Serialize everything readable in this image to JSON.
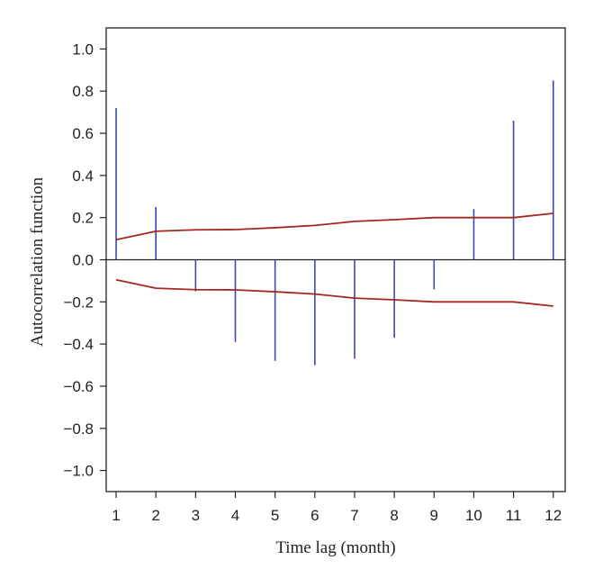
{
  "chart_data": {
    "type": "bar",
    "xlabel": "Time lag (month)",
    "ylabel": "Autocorrelation function",
    "ylim": [
      -1.1,
      1.1
    ],
    "xlim": [
      0.75,
      12.3
    ],
    "grid": false,
    "x_ticks": [
      1,
      2,
      3,
      4,
      5,
      6,
      7,
      8,
      9,
      10,
      11,
      12
    ],
    "y_ticks": [
      -1.0,
      -0.8,
      -0.6,
      -0.4,
      -0.2,
      0.0,
      0.2,
      0.4,
      0.6,
      0.8,
      1.0
    ],
    "x_tick_labels": [
      "1",
      "2",
      "3",
      "4",
      "5",
      "6",
      "7",
      "8",
      "9",
      "10",
      "11",
      "12"
    ],
    "y_tick_labels": [
      "−1.0",
      "−0.8",
      "−0.6",
      "−0.4",
      "−0.2",
      "0.0",
      "0.2",
      "0.4",
      "0.6",
      "0.8",
      "1.0"
    ],
    "series": [
      {
        "type": "bar",
        "x": [
          1,
          2,
          3,
          4,
          5,
          6,
          7,
          8,
          9,
          10,
          11,
          12
        ],
        "values": [
          0.72,
          0.25,
          -0.15,
          -0.39,
          -0.48,
          -0.5,
          -0.47,
          -0.37,
          -0.14,
          0.24,
          0.66,
          0.85
        ]
      },
      {
        "type": "line",
        "x": [
          1,
          2,
          3,
          4,
          5,
          6,
          7,
          8,
          9,
          10,
          11,
          12
        ],
        "values": [
          0.095,
          0.135,
          0.142,
          0.143,
          0.152,
          0.163,
          0.182,
          0.19,
          0.2,
          0.2,
          0.2,
          0.22
        ]
      },
      {
        "type": "line",
        "x": [
          1,
          2,
          3,
          4,
          5,
          6,
          7,
          8,
          9,
          10,
          11,
          12
        ],
        "values": [
          -0.095,
          -0.135,
          -0.142,
          -0.143,
          -0.152,
          -0.163,
          -0.182,
          -0.19,
          -0.2,
          -0.2,
          -0.2,
          -0.22
        ]
      }
    ],
    "colors": {
      "bars": "#3b45b5",
      "bands": "#a4281f",
      "axis": "#222222"
    }
  }
}
